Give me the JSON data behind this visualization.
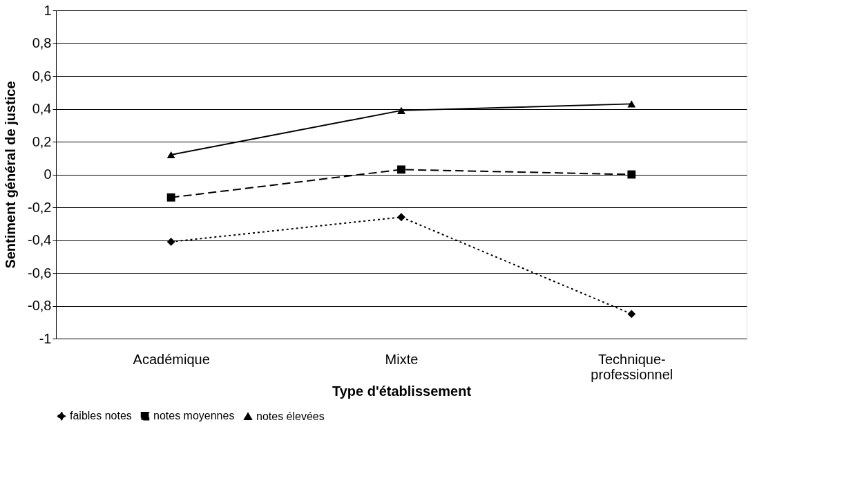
{
  "chart_data": {
    "type": "line",
    "xlabel": "Type d'établissement",
    "ylabel": "Sentiment général de justice",
    "categories": [
      "Académique",
      "Mixte",
      "Technique-professionnel"
    ],
    "series": [
      {
        "name": "faibles notes",
        "color": "#000000",
        "values": [
          -0.41,
          -0.26,
          -0.85
        ],
        "marker": "diamond",
        "line_style": "dotted"
      },
      {
        "name": "notes moyennes",
        "color": "#000000",
        "values": [
          -0.14,
          0.03,
          0.0
        ],
        "marker": "square",
        "line_style": "dashed"
      },
      {
        "name": "notes élevées",
        "color": "#000000",
        "values": [
          0.12,
          0.39,
          0.43
        ],
        "marker": "triangle",
        "line_style": "solid"
      }
    ],
    "ylim": [
      -1,
      1
    ],
    "yticks": [
      {
        "value": -1,
        "label": "-1"
      },
      {
        "value": -0.8,
        "label": "-0,8"
      },
      {
        "value": -0.6,
        "label": "-0,6"
      },
      {
        "value": -0.4,
        "label": "-0,4"
      },
      {
        "value": -0.2,
        "label": "-0,2"
      },
      0,
      {
        "value": 0.2,
        "label": "0,2"
      },
      {
        "value": 0.4,
        "label": "0,4"
      },
      {
        "value": 0.6,
        "label": "0,6"
      },
      {
        "value": 0.8,
        "label": "0,8"
      },
      1
    ],
    "grid": "y",
    "legend": "bottom"
  }
}
